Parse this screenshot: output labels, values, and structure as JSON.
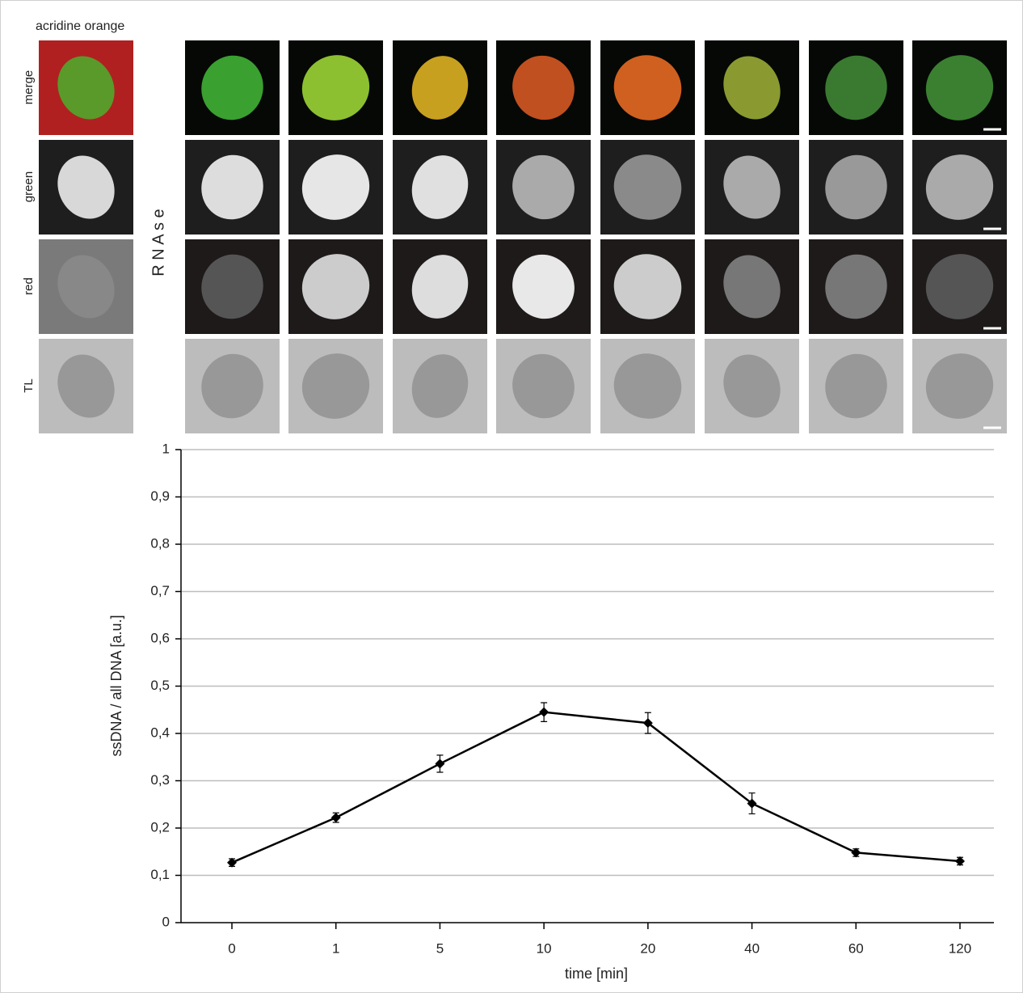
{
  "panel": {
    "title": "acridine orange",
    "rows": [
      "merge",
      "green",
      "red",
      "TL"
    ],
    "side_label": "R N A s e"
  },
  "chart_data": {
    "type": "line",
    "x_label": "time [min]",
    "y_label": "ssDNA / all DNA [a.u.]",
    "categories": [
      "0",
      "1",
      "5",
      "10",
      "20",
      "40",
      "60",
      "120"
    ],
    "series": [
      {
        "color": "#000000",
        "values": [
          0.127,
          0.222,
          0.336,
          0.445,
          0.422,
          0.252,
          0.148,
          0.13
        ],
        "errors": [
          0.008,
          0.01,
          0.018,
          0.02,
          0.022,
          0.022,
          0.008,
          0.008
        ]
      }
    ],
    "ylim": [
      0,
      1
    ],
    "yticks": [
      0,
      {
        "value": 0.1,
        "label": "0,1"
      },
      {
        "value": 0.2,
        "label": "0,2"
      },
      {
        "value": 0.3,
        "label": "0,3"
      },
      {
        "value": 0.4,
        "label": "0,4"
      },
      {
        "value": 0.5,
        "label": "0,5"
      },
      {
        "value": 0.6,
        "label": "0,6"
      },
      {
        "value": 0.7,
        "label": "0,7"
      },
      {
        "value": 0.8,
        "label": "0,8"
      },
      {
        "value": 0.9,
        "label": "0,9"
      },
      1
    ],
    "grid": true
  }
}
